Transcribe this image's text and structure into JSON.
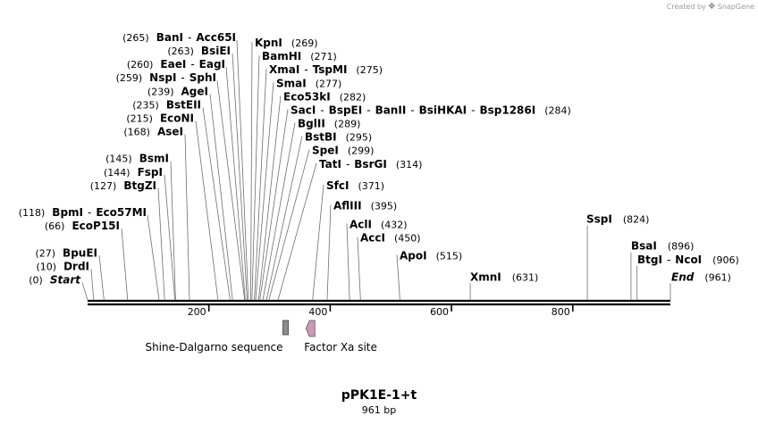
{
  "branding": {
    "prefix": "Created by",
    "brand": "SnapGene",
    "logo_icon": "snapgene-logo-icon"
  },
  "sequence": {
    "name": "pPK1E-1+t",
    "length_label": "961 bp",
    "length": 961
  },
  "axis": {
    "ticks": [
      200,
      400,
      600,
      800
    ]
  },
  "chart_data": {
    "type": "linear-map",
    "sequence_length": 961,
    "ticks": [
      200,
      400,
      600,
      800
    ],
    "sites": [
      {
        "parts": [
          "Start"
        ],
        "pos": 0,
        "italic": true
      },
      {
        "parts": [
          "DrdI"
        ],
        "pos": 10
      },
      {
        "parts": [
          "BpuEI"
        ],
        "pos": 27
      },
      {
        "parts": [
          "EcoP15I"
        ],
        "pos": 66
      },
      {
        "parts": [
          "BpmI",
          "Eco57MI"
        ],
        "pos": 118
      },
      {
        "parts": [
          "BtgZI"
        ],
        "pos": 127
      },
      {
        "parts": [
          "FspI"
        ],
        "pos": 144
      },
      {
        "parts": [
          "BsmI"
        ],
        "pos": 145
      },
      {
        "parts": [
          "AseI"
        ],
        "pos": 168
      },
      {
        "parts": [
          "EcoNI"
        ],
        "pos": 215
      },
      {
        "parts": [
          "BstEII"
        ],
        "pos": 235
      },
      {
        "parts": [
          "AgeI"
        ],
        "pos": 239
      },
      {
        "parts": [
          "NspI",
          "SphI"
        ],
        "pos": 259
      },
      {
        "parts": [
          "EaeI",
          "EagI"
        ],
        "pos": 260
      },
      {
        "parts": [
          "BsiEI"
        ],
        "pos": 263
      },
      {
        "parts": [
          "BanI",
          "Acc65I"
        ],
        "pos": 265
      },
      {
        "parts": [
          "KpnI"
        ],
        "pos": 269
      },
      {
        "parts": [
          "BamHI"
        ],
        "pos": 271
      },
      {
        "parts": [
          "XmaI",
          "TspMI"
        ],
        "pos": 275
      },
      {
        "parts": [
          "SmaI"
        ],
        "pos": 277
      },
      {
        "parts": [
          "Eco53kI"
        ],
        "pos": 282
      },
      {
        "parts": [
          "SacI",
          "BspEI",
          "BanII",
          "BsiHKAI",
          "Bsp1286I"
        ],
        "pos": 284
      },
      {
        "parts": [
          "BglII"
        ],
        "pos": 289
      },
      {
        "parts": [
          "BstBI"
        ],
        "pos": 295
      },
      {
        "parts": [
          "SpeI"
        ],
        "pos": 299
      },
      {
        "parts": [
          "TatI",
          "BsrGI"
        ],
        "pos": 314
      },
      {
        "parts": [
          "SfcI"
        ],
        "pos": 371
      },
      {
        "parts": [
          "AflIII"
        ],
        "pos": 395
      },
      {
        "parts": [
          "AclI"
        ],
        "pos": 432
      },
      {
        "parts": [
          "AccI"
        ],
        "pos": 450
      },
      {
        "parts": [
          "ApoI"
        ],
        "pos": 515
      },
      {
        "parts": [
          "XmnI"
        ],
        "pos": 631
      },
      {
        "parts": [
          "SspI"
        ],
        "pos": 824
      },
      {
        "parts": [
          "BsaI"
        ],
        "pos": 896
      },
      {
        "parts": [
          "BtgI",
          "NcoI"
        ],
        "pos": 906
      },
      {
        "parts": [
          "End"
        ],
        "pos": 961,
        "italic": true
      }
    ],
    "features": [
      {
        "name": "Shine-Dalgarno sequence",
        "start": 322,
        "end": 331,
        "shape": "box",
        "color": "#8c8c8c"
      },
      {
        "name": "Factor Xa site",
        "start": 363,
        "end": 374,
        "shape": "arrow",
        "color": "#c99ab2"
      }
    ]
  }
}
